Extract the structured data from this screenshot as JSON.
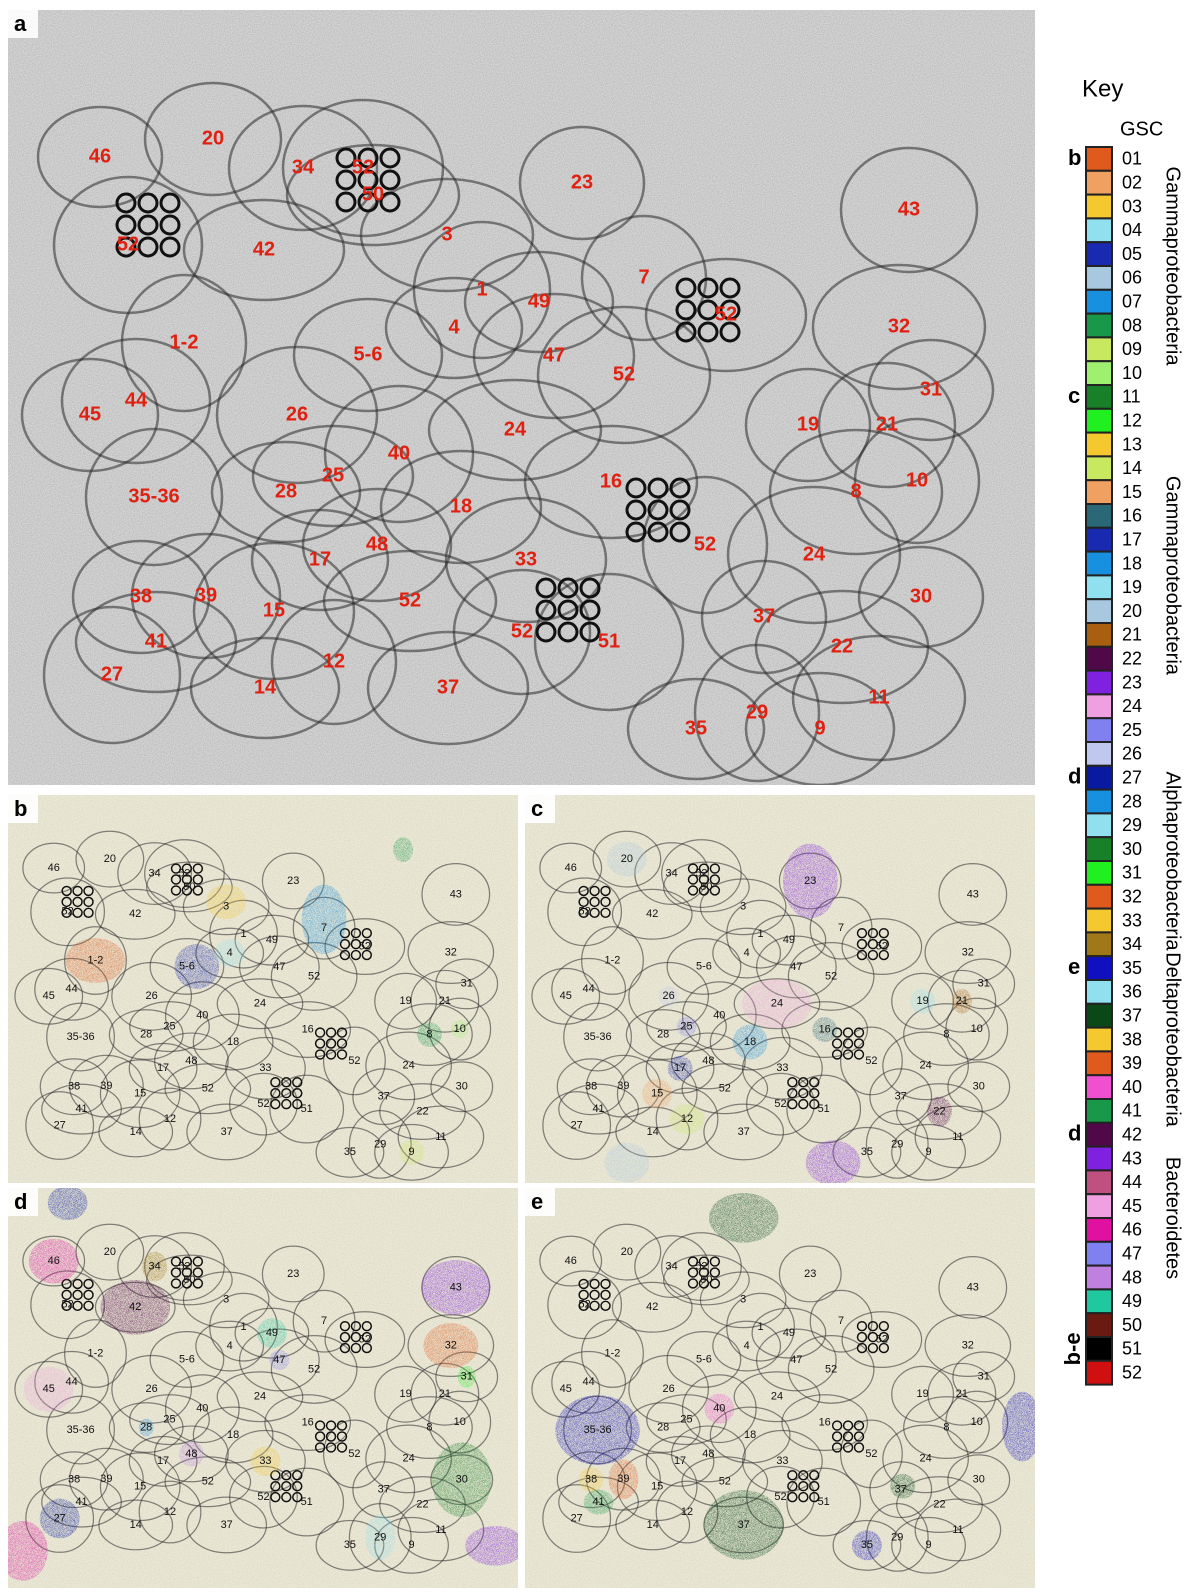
{
  "panel_letters": [
    "a",
    "b",
    "c",
    "d",
    "e"
  ],
  "cell_labels": [
    "46",
    "20",
    "34",
    "52",
    "50",
    "23",
    "43",
    "52",
    "42",
    "3",
    "7",
    "1",
    "49",
    "52",
    "32",
    "1-2",
    "4",
    "5-6",
    "47",
    "52",
    "31",
    "45",
    "44",
    "26",
    "24",
    "19",
    "21",
    "40",
    "25",
    "16",
    "10",
    "35-36",
    "28",
    "18",
    "8",
    "52",
    "17",
    "48",
    "33",
    "24",
    "30",
    "38",
    "39",
    "15",
    "52",
    "37",
    "52",
    "51",
    "41",
    "22",
    "12",
    "27",
    "14",
    "37",
    "11",
    "29",
    "35",
    "9"
  ],
  "key": {
    "title": "Key",
    "header": "GSC",
    "groups": [
      {
        "letter": "b",
        "name": "Gammaproteobacteria",
        "items": [
          {
            "id": "01",
            "color": "#e05a1e"
          },
          {
            "id": "02",
            "color": "#f0a060"
          },
          {
            "id": "03",
            "color": "#f5c830"
          },
          {
            "id": "04",
            "color": "#90e0f0"
          },
          {
            "id": "05",
            "color": "#1a2ab0"
          },
          {
            "id": "06",
            "color": "#a8c8e0"
          },
          {
            "id": "07",
            "color": "#1890e0"
          },
          {
            "id": "08",
            "color": "#189848"
          },
          {
            "id": "09",
            "color": "#c8e860"
          },
          {
            "id": "10",
            "color": "#a0f070"
          }
        ]
      },
      {
        "letter": "c",
        "name": "Gammaproteobacteria",
        "items": [
          {
            "id": "11",
            "color": "#188028"
          },
          {
            "id": "12",
            "color": "#20f020"
          },
          {
            "id": "13",
            "color": "#f5c830"
          },
          {
            "id": "14",
            "color": "#c8e860"
          },
          {
            "id": "15",
            "color": "#f0a060"
          },
          {
            "id": "16",
            "color": "#2a6878"
          },
          {
            "id": "17",
            "color": "#1a2ab0"
          },
          {
            "id": "18",
            "color": "#1890e0"
          },
          {
            "id": "19",
            "color": "#90e0f0"
          },
          {
            "id": "20",
            "color": "#a8c8e0"
          },
          {
            "id": "21",
            "color": "#a86010"
          },
          {
            "id": "22",
            "color": "#500848"
          },
          {
            "id": "23",
            "color": "#8020e0"
          },
          {
            "id": "24",
            "color": "#f0a0e0"
          },
          {
            "id": "25",
            "color": "#8080f0"
          },
          {
            "id": "26",
            "color": "#c0c8f0"
          }
        ]
      },
      {
        "letter": "d",
        "name": "Alphaproteobacteria",
        "items": [
          {
            "id": "27",
            "color": "#0a1aa0"
          },
          {
            "id": "28",
            "color": "#1890e0"
          },
          {
            "id": "29",
            "color": "#90e0f0"
          },
          {
            "id": "30",
            "color": "#188028"
          },
          {
            "id": "31",
            "color": "#20f020"
          },
          {
            "id": "32",
            "color": "#e05a1e"
          },
          {
            "id": "33",
            "color": "#f5c830"
          },
          {
            "id": "34",
            "color": "#a07818"
          }
        ]
      },
      {
        "letter": "e",
        "name": "Deltaproteobacteria",
        "items": [
          {
            "id": "35",
            "color": "#1010c0"
          },
          {
            "id": "36",
            "color": "#90e0f0"
          },
          {
            "id": "37",
            "color": "#0a4818"
          },
          {
            "id": "38",
            "color": "#f5c830"
          },
          {
            "id": "39",
            "color": "#e05a1e"
          },
          {
            "id": "40",
            "color": "#f050d0"
          },
          {
            "id": "41",
            "color": "#189848"
          }
        ]
      },
      {
        "letter": "d",
        "name": "Bacteroidetes",
        "items": [
          {
            "id": "42",
            "color": "#500848"
          },
          {
            "id": "43",
            "color": "#8020e0"
          },
          {
            "id": "44",
            "color": "#c05080"
          },
          {
            "id": "45",
            "color": "#f0a0e0"
          },
          {
            "id": "46",
            "color": "#e010a0"
          },
          {
            "id": "47",
            "color": "#8080f0"
          },
          {
            "id": "48",
            "color": "#c080e0"
          },
          {
            "id": "49",
            "color": "#20c8a0"
          }
        ]
      },
      {
        "letter": "b-e",
        "items": [
          {
            "id": "50",
            "color": "#6a1a10"
          },
          {
            "id": "51",
            "color": "#000000"
          },
          {
            "id": "52",
            "color": "#d01010"
          }
        ]
      }
    ]
  }
}
